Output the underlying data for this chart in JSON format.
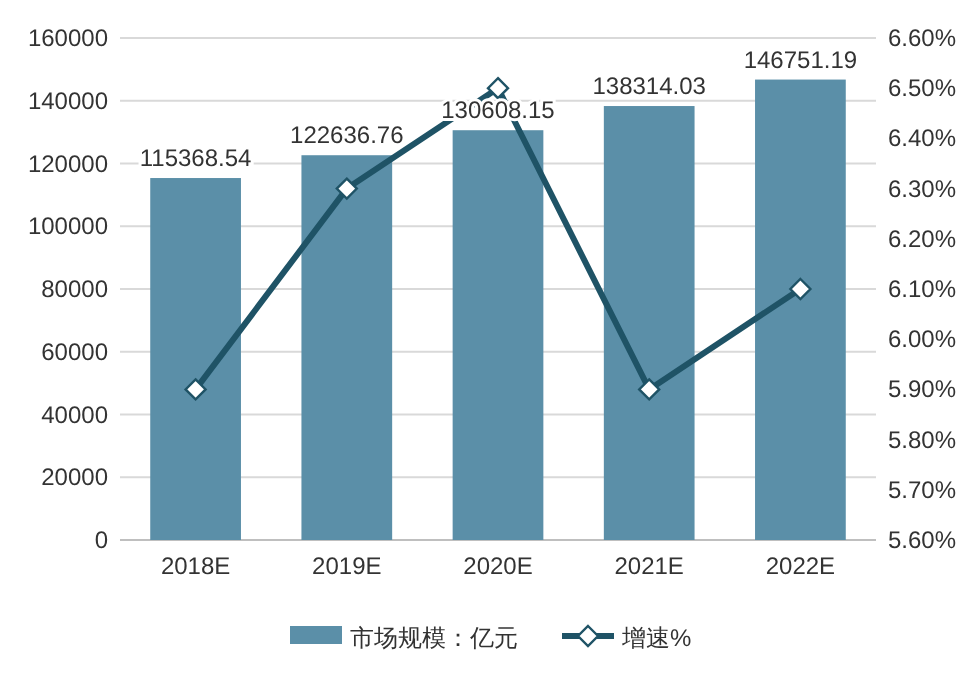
{
  "chart_data": {
    "type": "bar",
    "categories": [
      "2018E",
      "2019E",
      "2020E",
      "2021E",
      "2022E"
    ],
    "series": [
      {
        "name": "市场规模：亿元",
        "color": "#5b8fa8",
        "values": [
          115368.54,
          122636.76,
          130608.15,
          138314.03,
          146751.19
        ],
        "value_labels": [
          "115368.54",
          "122636.76",
          "130608.15",
          "138314.03",
          "146751.19"
        ]
      },
      {
        "name": "增速%",
        "type": "line",
        "axis": "y2",
        "color": "#1f5366",
        "values": [
          5.9,
          6.3,
          6.5,
          5.9,
          6.1
        ],
        "marker": "diamond"
      }
    ],
    "ylim": [
      0,
      160000
    ],
    "yticks": [
      0,
      20000,
      40000,
      60000,
      80000,
      100000,
      120000,
      140000,
      160000
    ],
    "y2lim": [
      5.6,
      6.6
    ],
    "y2ticks": [
      {
        "value": 5.6,
        "label": "5.60%"
      },
      {
        "value": 5.7,
        "label": "5.70%"
      },
      {
        "value": 5.8,
        "label": "5.80%"
      },
      {
        "value": 5.9,
        "label": "5.90%"
      },
      {
        "value": 6.0,
        "label": "6.00%"
      },
      {
        "value": 6.1,
        "label": "6.10%"
      },
      {
        "value": 6.2,
        "label": "6.20%"
      },
      {
        "value": 6.3,
        "label": "6.30%"
      },
      {
        "value": 6.4,
        "label": "6.40%"
      },
      {
        "value": 6.5,
        "label": "6.50%"
      },
      {
        "value": 6.6,
        "label": "6.60%"
      }
    ],
    "grid": "y",
    "legend": "bottom"
  }
}
